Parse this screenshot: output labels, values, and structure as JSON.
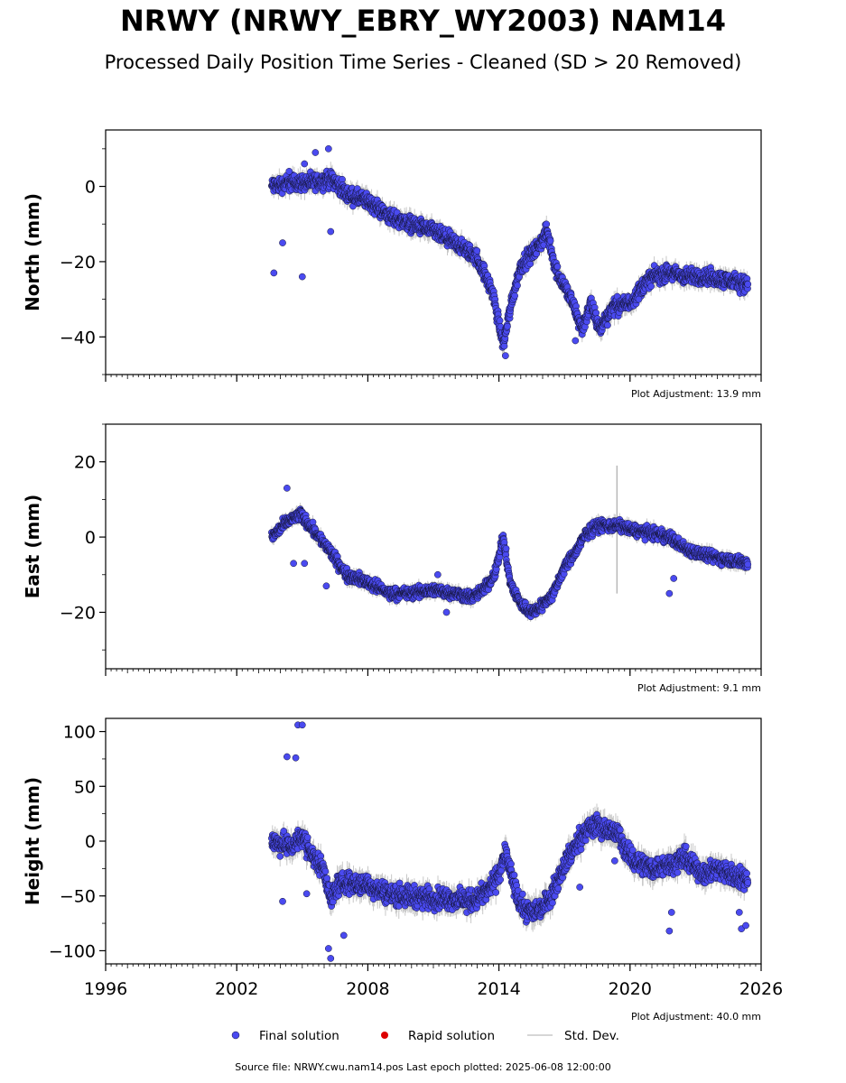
{
  "title": "NRWY (NRWY_EBRY_WY2003) NAM14",
  "subtitle": "Processed Daily Position Time Series - Cleaned (SD > 20 Removed)",
  "footer": "Source file: NRWY.cwu.nam14.pos  Last epoch plotted: 2025-06-08 12:00:00",
  "colors": {
    "final": "#4a4af0",
    "rapid": "#dd0000",
    "stddev": "#c8c8c8"
  },
  "chart_data": {
    "type": "scatter",
    "x_range": [
      1996,
      2026
    ],
    "x_ticks": [
      1996,
      2002,
      2008,
      2014,
      2020,
      2026
    ],
    "x_tick_labels": [
      "1996",
      "2002",
      "2008",
      "2014",
      "2020",
      "2026"
    ],
    "legend": {
      "placement": "bottom-center",
      "items": [
        {
          "label": "Final solution",
          "kind": "dot",
          "color": "#4a4af0"
        },
        {
          "label": "Rapid solution",
          "kind": "dot",
          "color": "#dd0000"
        },
        {
          "label": "Std. Dev.",
          "kind": "line",
          "color": "#c8c8c8"
        }
      ]
    },
    "panels": [
      {
        "ylabel": "North (mm)",
        "ylim": [
          -50,
          15
        ],
        "yticks": [
          -40,
          -20,
          0
        ],
        "ytick_labels": [
          "−40",
          "−20",
          "0"
        ],
        "adjustment": "Plot Adjustment: 13.9 mm",
        "trend": [
          [
            2003.6,
            0
          ],
          [
            2004.5,
            1
          ],
          [
            2005.5,
            1
          ],
          [
            2006.4,
            2
          ],
          [
            2007,
            -2
          ],
          [
            2008,
            -4
          ],
          [
            2009,
            -8
          ],
          [
            2010,
            -10
          ],
          [
            2011,
            -12
          ],
          [
            2012,
            -15
          ],
          [
            2013,
            -19
          ],
          [
            2013.7,
            -28
          ],
          [
            2014.2,
            -42
          ],
          [
            2014.6,
            -30
          ],
          [
            2015,
            -21
          ],
          [
            2015.8,
            -16
          ],
          [
            2016.2,
            -12
          ],
          [
            2016.6,
            -22
          ],
          [
            2017.3,
            -30
          ],
          [
            2017.8,
            -38
          ],
          [
            2018.2,
            -31
          ],
          [
            2018.6,
            -38
          ],
          [
            2019.2,
            -32
          ],
          [
            2020,
            -31
          ],
          [
            2020.5,
            -27
          ],
          [
            2021,
            -24
          ],
          [
            2021.8,
            -23
          ],
          [
            2022.5,
            -24
          ],
          [
            2023.5,
            -24
          ],
          [
            2024.5,
            -25
          ],
          [
            2025.4,
            -26
          ]
        ],
        "noise": 1.8,
        "outliers": [
          [
            2003.7,
            -23
          ],
          [
            2004.1,
            -15
          ],
          [
            2005,
            -24
          ],
          [
            2004.4,
            4
          ],
          [
            2005.1,
            6
          ],
          [
            2005.6,
            9
          ],
          [
            2006.2,
            10
          ],
          [
            2006.3,
            -12
          ],
          [
            2017.5,
            -41
          ],
          [
            2014.3,
            -45
          ],
          [
            2020.4,
            -30
          ]
        ]
      },
      {
        "ylabel": "East (mm)",
        "ylim": [
          -35,
          30
        ],
        "yticks": [
          -20,
          0,
          20
        ],
        "ytick_labels": [
          "−20",
          "0",
          "20"
        ],
        "adjustment": "Plot Adjustment: 9.1 mm",
        "trend": [
          [
            2003.6,
            0
          ],
          [
            2004.3,
            4
          ],
          [
            2004.9,
            6
          ],
          [
            2005.5,
            2
          ],
          [
            2006.3,
            -4
          ],
          [
            2007,
            -10
          ],
          [
            2008,
            -12
          ],
          [
            2009,
            -15
          ],
          [
            2010,
            -15
          ],
          [
            2011,
            -14
          ],
          [
            2012,
            -15
          ],
          [
            2012.8,
            -16
          ],
          [
            2013.3,
            -14
          ],
          [
            2013.8,
            -10
          ],
          [
            2014.2,
            0
          ],
          [
            2014.5,
            -12
          ],
          [
            2015,
            -18
          ],
          [
            2015.5,
            -20
          ],
          [
            2016,
            -18
          ],
          [
            2016.5,
            -15
          ],
          [
            2017,
            -8
          ],
          [
            2017.5,
            -4
          ],
          [
            2018,
            1
          ],
          [
            2018.5,
            3
          ],
          [
            2019,
            3
          ],
          [
            2019.5,
            3
          ],
          [
            2020,
            2
          ],
          [
            2021,
            1
          ],
          [
            2021.8,
            0
          ],
          [
            2022.5,
            -3
          ],
          [
            2023.5,
            -5
          ],
          [
            2024.5,
            -6
          ],
          [
            2025.4,
            -7
          ]
        ],
        "noise": 1.3,
        "outliers": [
          [
            2004.3,
            13
          ],
          [
            2004.6,
            -7
          ],
          [
            2005.1,
            -7
          ],
          [
            2006.1,
            -13
          ],
          [
            2011.6,
            -20
          ],
          [
            2011.2,
            -10
          ],
          [
            2021.8,
            -15
          ],
          [
            2022,
            -11
          ]
        ],
        "stddev_spikes": [
          [
            2019.4,
            -15,
            19
          ]
        ]
      },
      {
        "ylabel": "Height (mm)",
        "ylim": [
          -112,
          112
        ],
        "yticks": [
          -100,
          -50,
          0,
          50,
          100
        ],
        "ytick_labels": [
          "−100",
          "−50",
          "0",
          "50",
          "100"
        ],
        "adjustment": "Plot Adjustment: 40.0 mm",
        "trend": [
          [
            2003.6,
            0
          ],
          [
            2004.5,
            -5
          ],
          [
            2005,
            5
          ],
          [
            2005.5,
            -15
          ],
          [
            2006,
            -25
          ],
          [
            2006.3,
            -55
          ],
          [
            2006.6,
            -40
          ],
          [
            2007,
            -38
          ],
          [
            2008,
            -40
          ],
          [
            2009,
            -48
          ],
          [
            2010,
            -50
          ],
          [
            2011,
            -52
          ],
          [
            2012,
            -53
          ],
          [
            2012.8,
            -55
          ],
          [
            2013.5,
            -45
          ],
          [
            2014,
            -30
          ],
          [
            2014.3,
            -10
          ],
          [
            2014.6,
            -35
          ],
          [
            2015,
            -60
          ],
          [
            2015.5,
            -65
          ],
          [
            2016,
            -60
          ],
          [
            2016.5,
            -45
          ],
          [
            2017,
            -20
          ],
          [
            2017.5,
            -5
          ],
          [
            2018,
            10
          ],
          [
            2018.5,
            15
          ],
          [
            2019,
            10
          ],
          [
            2019.5,
            5
          ],
          [
            2020,
            -15
          ],
          [
            2020.5,
            -20
          ],
          [
            2021,
            -25
          ],
          [
            2022,
            -20
          ],
          [
            2022.5,
            -15
          ],
          [
            2023,
            -25
          ],
          [
            2023.5,
            -30
          ],
          [
            2024,
            -25
          ],
          [
            2024.5,
            -30
          ],
          [
            2025.4,
            -35
          ]
        ],
        "noise": 8,
        "outliers": [
          [
            2004.8,
            106
          ],
          [
            2005,
            106
          ],
          [
            2004.3,
            77
          ],
          [
            2004.7,
            76
          ],
          [
            2004.1,
            -55
          ],
          [
            2005.2,
            -48
          ],
          [
            2006.2,
            -98
          ],
          [
            2006.3,
            -107
          ],
          [
            2006.9,
            -86
          ],
          [
            2017.7,
            -42
          ],
          [
            2019.3,
            -18
          ],
          [
            2021.8,
            -82
          ],
          [
            2021.9,
            -65
          ],
          [
            2025,
            -65
          ],
          [
            2025.1,
            -80
          ],
          [
            2025.3,
            -77
          ]
        ]
      }
    ]
  }
}
